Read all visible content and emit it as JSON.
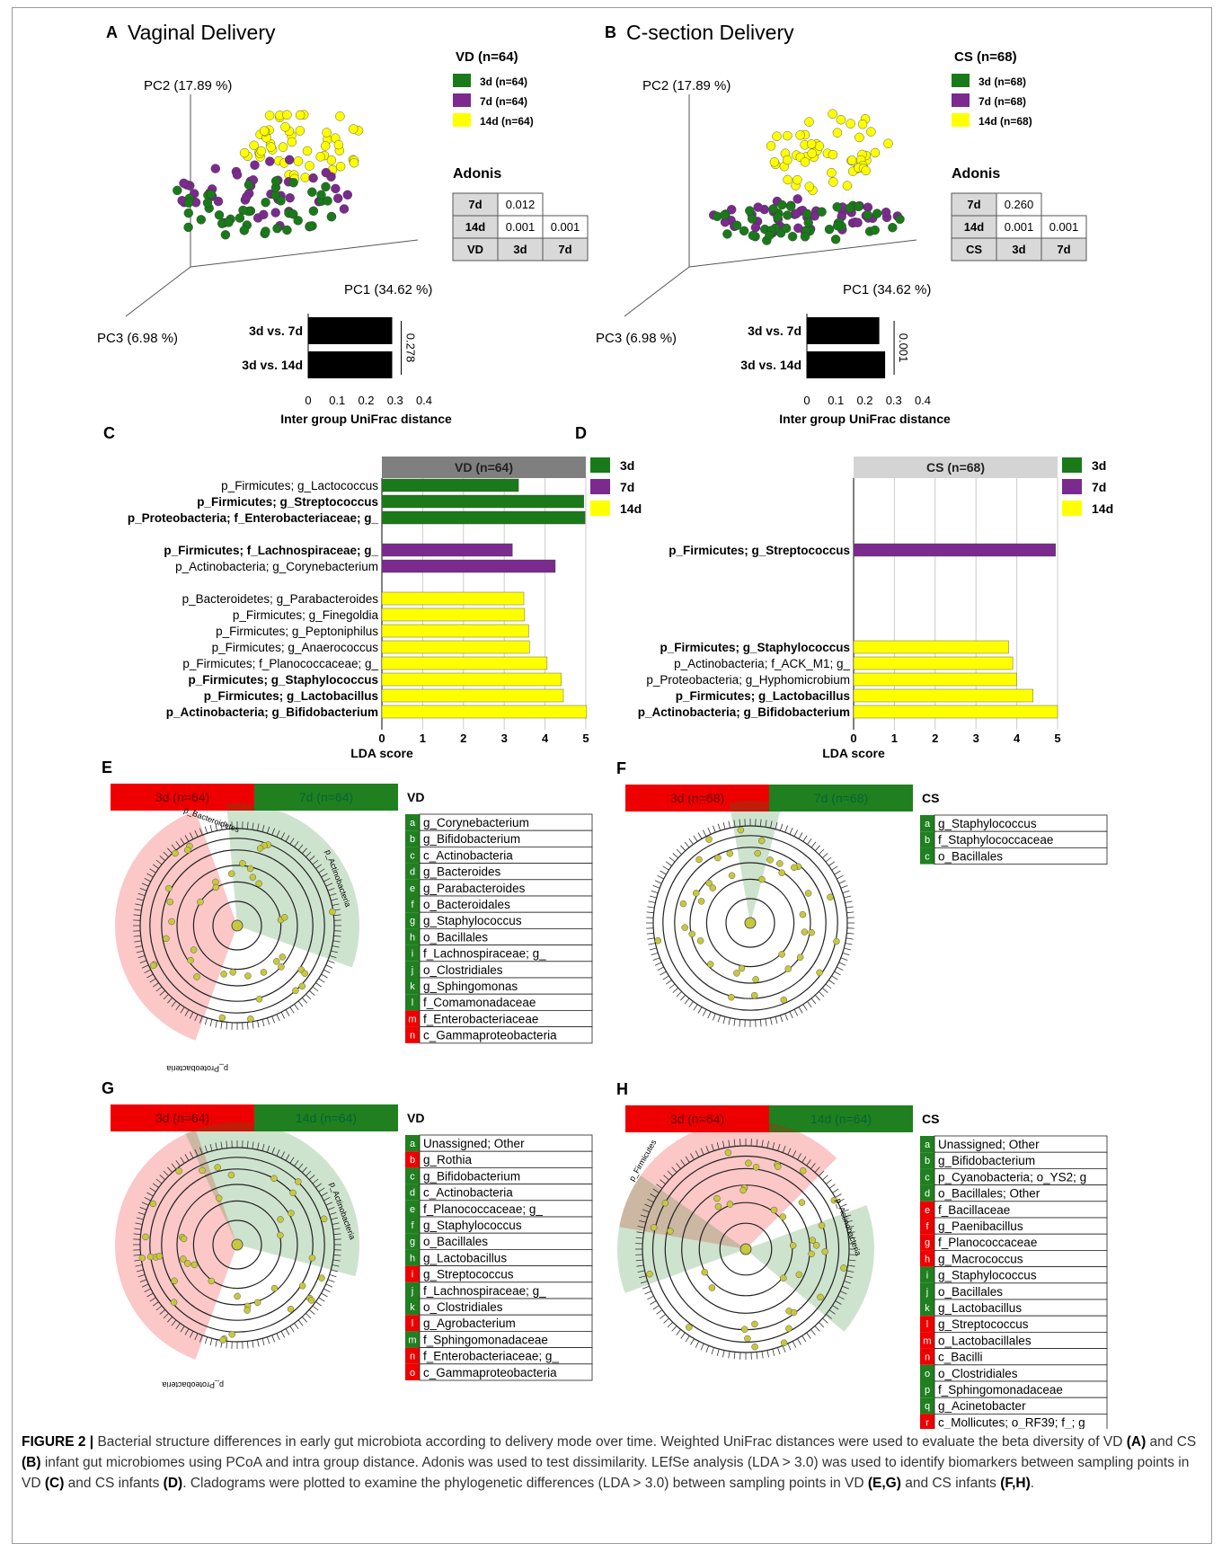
{
  "palette": {
    "d3": "#1a7a1a",
    "d7": "#7b2a8e",
    "d14": "#ffff00",
    "red": "#ee0000",
    "green": "#208020",
    "gray_header": "#7f7f7f",
    "light_header": "#d4d4d4"
  },
  "panels": {
    "A": {
      "letter": "A",
      "title": "Vaginal Delivery",
      "group_title": "VD (n=64)",
      "legend": [
        "3d (n=64)",
        "7d (n=64)",
        "14d (n=64)"
      ],
      "axes": {
        "pc1": "PC1 (34.62 %)",
        "pc2": "PC2 (17.89 %)",
        "pc3": "PC3 (6.98 %)"
      },
      "adonis": {
        "title": "Adonis",
        "rows": [
          [
            "7d",
            "0.012",
            ""
          ],
          [
            "14d",
            "0.001",
            "0.001"
          ],
          [
            "VD",
            "3d",
            "7d"
          ]
        ]
      }
    },
    "B": {
      "letter": "B",
      "title": "C-section Delivery",
      "group_title": "CS (n=68)",
      "legend": [
        "3d (n=68)",
        "7d (n=68)",
        "14d (n=68)"
      ],
      "axes": {
        "pc1": "PC1 (34.62 %)",
        "pc2": "PC2 (17.89 %)",
        "pc3": "PC3 (6.98 %)"
      },
      "adonis": {
        "title": "Adonis",
        "rows": [
          [
            "7d",
            "0.260",
            ""
          ],
          [
            "14d",
            "0.001",
            "0.001"
          ],
          [
            "CS",
            "3d",
            "7d"
          ]
        ]
      }
    },
    "C": {
      "letter": "C"
    },
    "D": {
      "letter": "D"
    },
    "E": {
      "letter": "E"
    },
    "F": {
      "letter": "F"
    },
    "G": {
      "letter": "G"
    },
    "H": {
      "letter": "H"
    }
  },
  "chart_data": [
    {
      "id": "A-distance",
      "type": "bar",
      "orientation": "horizontal",
      "categories": [
        "3d vs. 7d",
        "3d vs. 14d"
      ],
      "values": [
        0.29,
        0.29
      ],
      "xlabel": "Inter group UniFrac distance",
      "xlim": [
        0,
        0.4
      ],
      "xticks": [
        "0",
        "0.1",
        "0.2",
        "0.3",
        "0.4"
      ],
      "annotation": "0.278"
    },
    {
      "id": "B-distance",
      "type": "bar",
      "orientation": "horizontal",
      "categories": [
        "3d vs. 7d",
        "3d vs. 14d"
      ],
      "values": [
        0.25,
        0.27
      ],
      "xlabel": "Inter group UniFrac distance",
      "xlim": [
        0,
        0.4
      ],
      "xticks": [
        "0",
        "0.1",
        "0.2",
        "0.3",
        "0.4"
      ],
      "annotation": "0.001"
    },
    {
      "id": "C-lefse",
      "type": "bar",
      "orientation": "horizontal",
      "header": "VD (n=64)",
      "xlabel": "LDA score",
      "xlim": [
        0,
        5
      ],
      "xticks": [
        "0",
        "1",
        "2",
        "3",
        "4",
        "5"
      ],
      "legend": [
        "3d",
        "7d",
        "14d"
      ],
      "bars": [
        {
          "label": "p_Firmicutes; g_Lactococcus",
          "value": 3.35,
          "group": "3d",
          "bold": false
        },
        {
          "label": "p_Firmicutes; g_Streptococcus",
          "value": 4.95,
          "group": "3d",
          "bold": true
        },
        {
          "label": "p_Proteobacteria; f_Enterobacteriaceae; g_",
          "value": 4.98,
          "group": "3d",
          "bold": true
        },
        {
          "label": "p_Firmicutes; f_Lachnospiraceae; g_",
          "value": 3.2,
          "group": "7d",
          "bold": true
        },
        {
          "label": "p_Actinobacteria; g_Corynebacterium",
          "value": 4.25,
          "group": "7d",
          "bold": false
        },
        {
          "label": "p_Bacteroidetes; g_Parabacteroides",
          "value": 3.48,
          "group": "14d",
          "bold": false
        },
        {
          "label": "p_Firmicutes; g_Finegoldia",
          "value": 3.5,
          "group": "14d",
          "bold": false
        },
        {
          "label": "p_Firmicutes; g_Peptoniphilus",
          "value": 3.6,
          "group": "14d",
          "bold": false
        },
        {
          "label": "p_Firmicutes; g_Anaerococcus",
          "value": 3.62,
          "group": "14d",
          "bold": false
        },
        {
          "label": "p_Firmicutes; f_Planococcaceae; g_",
          "value": 4.05,
          "group": "14d",
          "bold": false
        },
        {
          "label": "p_Firmicutes; g_Staphylococcus",
          "value": 4.4,
          "group": "14d",
          "bold": true
        },
        {
          "label": "p_Firmicutes; g_Lactobacillus",
          "value": 4.45,
          "group": "14d",
          "bold": true
        },
        {
          "label": "p_Actinobacteria; g_Bifidobacterium",
          "value": 5.02,
          "group": "14d",
          "bold": true
        }
      ]
    },
    {
      "id": "D-lefse",
      "type": "bar",
      "orientation": "horizontal",
      "header": "CS (n=68)",
      "xlabel": "LDA score",
      "xlim": [
        0,
        5
      ],
      "xticks": [
        "0",
        "1",
        "2",
        "3",
        "4",
        "5"
      ],
      "legend": [
        "3d",
        "7d",
        "14d"
      ],
      "bars": [
        {
          "label": "p_Firmicutes; g_Streptococcus",
          "value": 4.95,
          "group": "7d",
          "bold": true
        },
        {
          "label": "p_Firmicutes; g_Staphylococcus",
          "value": 3.8,
          "group": "14d",
          "bold": true
        },
        {
          "label": "p_Actinobacteria; f_ACK_M1; g_",
          "value": 3.9,
          "group": "14d",
          "bold": false
        },
        {
          "label": "p_Proteobacteria; g_Hyphomicrobium",
          "value": 4.0,
          "group": "14d",
          "bold": false
        },
        {
          "label": "p_Firmicutes; g_Lactobacillus",
          "value": 4.4,
          "group": "14d",
          "bold": true
        },
        {
          "label": "p_Actinobacteria; g_Bifidobacterium",
          "value": 5.0,
          "group": "14d",
          "bold": true
        }
      ]
    },
    {
      "id": "E-cladogram",
      "type": "table",
      "header": [
        "3d (n=64)",
        "7d (n=64)"
      ],
      "group": "VD",
      "items": [
        [
          "a",
          "g_Corynebacterium",
          "green"
        ],
        [
          "b",
          "g_Bifidobacterium",
          "green"
        ],
        [
          "c",
          "c_Actinobacteria",
          "green"
        ],
        [
          "d",
          "g_Bacteroides",
          "green"
        ],
        [
          "e",
          "g_Parabacteroides",
          "green"
        ],
        [
          "f",
          "o_Bacteroidales",
          "green"
        ],
        [
          "g",
          "g_Staphylococcus",
          "green"
        ],
        [
          "h",
          "o_Bacillales",
          "green"
        ],
        [
          "i",
          "f_Lachnospiraceae; g_",
          "green"
        ],
        [
          "j",
          "o_Clostridiales",
          "green"
        ],
        [
          "k",
          "g_Sphingomonas",
          "green"
        ],
        [
          "l",
          "f_Comamonadaceae",
          "green"
        ],
        [
          "m",
          "f_Enterobacteriaceae",
          "red"
        ],
        [
          "n",
          "c_Gammaproteobacteria",
          "red"
        ]
      ],
      "tree_labels": [
        "p_Bacteroidetes",
        "p_Actinobacteria",
        "p_Proteobacteria"
      ]
    },
    {
      "id": "F-cladogram",
      "type": "table",
      "header": [
        "3d (n=68)",
        "7d (n=68)"
      ],
      "group": "CS",
      "items": [
        [
          "a",
          "g_Staphylococcus",
          "green"
        ],
        [
          "b",
          "f_Staphylococcaceae",
          "green"
        ],
        [
          "c",
          "o_Bacillales",
          "green"
        ]
      ],
      "tree_labels": []
    },
    {
      "id": "G-cladogram",
      "type": "table",
      "header": [
        "3d (n=64)",
        "14d (n=64)"
      ],
      "group": "VD",
      "items": [
        [
          "a",
          "Unassigned; Other",
          "green"
        ],
        [
          "b",
          "g_Rothia",
          "red"
        ],
        [
          "c",
          "g_Bifidobacterium",
          "green"
        ],
        [
          "d",
          "c_Actinobacteria",
          "green"
        ],
        [
          "e",
          "f_Planococcaceae; g_",
          "green"
        ],
        [
          "f",
          "g_Staphylococcus",
          "green"
        ],
        [
          "g",
          "o_Bacillales",
          "green"
        ],
        [
          "h",
          "g_Lactobacillus",
          "green"
        ],
        [
          "i",
          "g_Streptococcus",
          "red"
        ],
        [
          "j",
          "f_Lachnospiraceae; g_",
          "green"
        ],
        [
          "k",
          "o_Clostridiales",
          "green"
        ],
        [
          "l",
          "g_Agrobacterium",
          "red"
        ],
        [
          "m",
          "f_Sphingomonadaceae",
          "green"
        ],
        [
          "n",
          "f_Enterobacteriaceae; g_",
          "red"
        ],
        [
          "o",
          "c_Gammaproteobacteria",
          "red"
        ]
      ],
      "tree_labels": [
        "p_Actinobacteria",
        "p_Proteobacteria"
      ]
    },
    {
      "id": "H-cladogram",
      "type": "table",
      "header": [
        "3d (n=64)",
        "14d (n=64)"
      ],
      "group": "CS",
      "items": [
        [
          "a",
          "Unassigned; Other",
          "green"
        ],
        [
          "b",
          "g_Bifidobacterium",
          "green"
        ],
        [
          "c",
          "p_Cyanobacteria; o_YS2; g",
          "green"
        ],
        [
          "d",
          "o_Bacillales; Other",
          "green"
        ],
        [
          "e",
          "f_Bacillaceae",
          "red"
        ],
        [
          "f",
          "g_Paenibacillus",
          "red"
        ],
        [
          "g",
          "f_Planococcaceae",
          "red"
        ],
        [
          "h",
          "g_Macrococcus",
          "red"
        ],
        [
          "i",
          "g_Staphylococcus",
          "green"
        ],
        [
          "j",
          "o_Bacillales",
          "green"
        ],
        [
          "k",
          "g_Lactobacillus",
          "green"
        ],
        [
          "l",
          "g_Streptococcus",
          "red"
        ],
        [
          "m",
          "o_Lactobacillales",
          "red"
        ],
        [
          "n",
          "c_Bacilli",
          "red"
        ],
        [
          "o",
          "o_Clostridiales",
          "green"
        ],
        [
          "p",
          "f_Sphingomonadaceae",
          "green"
        ],
        [
          "q",
          "g_Acinetobacter",
          "green"
        ],
        [
          "r",
          "c_Mollicutes; o_RF39; f_; g",
          "red"
        ]
      ],
      "tree_labels": [
        "p_Firmicutes",
        "p_Actinobacteria"
      ]
    }
  ],
  "caption": {
    "label": "FIGURE 2 |",
    "parts": [
      " Bacterial structure differences in early gut microbiota according to delivery mode over time. Weighted UniFrac distances were used to evaluate the beta diversity of VD ",
      "(A)",
      " and CS ",
      "(B)",
      " infant gut microbiomes using PCoA and intra group distance. Adonis was used to test dissimilarity. LEfSe analysis (LDA > 3.0) was used to identify biomarkers between sampling points in VD ",
      "(C)",
      " and CS infants ",
      "(D)",
      ". Cladograms were plotted to examine the phylogenetic differences (LDA > 3.0) between sampling points in VD ",
      "(E,G)",
      " and CS infants ",
      "(F,H)",
      "."
    ]
  }
}
